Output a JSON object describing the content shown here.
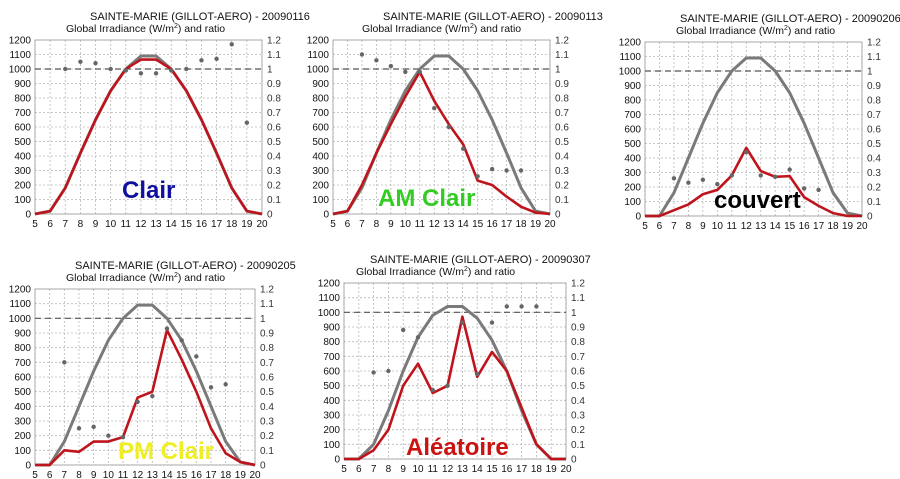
{
  "colors": {
    "clear_sky_line": "#7a7a7a",
    "measured_line": "#c0141c",
    "ratio_dots": "#666666"
  },
  "chart_data": [
    {
      "type": "line",
      "title": "SAINTE-MARIE (GILLOT-AERO) - 20090116",
      "subtitle_text": "Global Irradiance (W/m",
      "subtitle_sup": "2",
      "subtitle_end": ") and ratio",
      "label": "Clair",
      "label_color": "#0f0fa0",
      "x": [
        5,
        6,
        7,
        8,
        9,
        10,
        11,
        12,
        13,
        14,
        15,
        16,
        17,
        18,
        19,
        20
      ],
      "y_left_ticks": [
        0,
        100,
        200,
        300,
        400,
        500,
        600,
        700,
        800,
        900,
        1000,
        1100,
        1200
      ],
      "y_right_ticks": [
        "0",
        "0.1",
        "0.2",
        "0.3",
        "0.4",
        "0.5",
        "0.6",
        "0.7",
        "0.8",
        "0.9",
        "1",
        "1.1",
        "1.2"
      ],
      "ylim_left": [
        0,
        1200
      ],
      "ylim_right": [
        0,
        1.2
      ],
      "grid": true,
      "reference_ratio": 1,
      "series": [
        {
          "values": [
            0,
            20,
            180,
            420,
            650,
            850,
            1000,
            1090,
            1090,
            1000,
            850,
            650,
            420,
            180,
            20,
            0
          ]
        },
        {
          "values": [
            0,
            20,
            180,
            420,
            650,
            850,
            1000,
            1065,
            1065,
            1000,
            850,
            650,
            420,
            180,
            20,
            0
          ]
        }
      ],
      "ratio_points": [
        [
          7,
          1.0
        ],
        [
          8,
          1.05
        ],
        [
          9,
          1.04
        ],
        [
          10,
          1.0
        ],
        [
          11,
          0.99
        ],
        [
          12,
          0.97
        ],
        [
          13,
          0.97
        ],
        [
          14,
          0.99
        ],
        [
          15,
          1.0
        ],
        [
          16,
          1.06
        ],
        [
          17,
          1.07
        ],
        [
          18,
          1.17
        ],
        [
          19,
          0.63
        ]
      ]
    },
    {
      "type": "line",
      "title": "SAINTE-MARIE (GILLOT-AERO) - 20090113",
      "subtitle_text": "Global Irradiance (W/m",
      "subtitle_sup": "2",
      "subtitle_end": ") and ratio",
      "label": "AM Clair",
      "label_color": "#33cc22",
      "x": [
        5,
        6,
        7,
        8,
        9,
        10,
        11,
        12,
        13,
        14,
        15,
        16,
        17,
        18,
        19,
        20
      ],
      "y_left_ticks": [
        0,
        100,
        200,
        300,
        400,
        500,
        600,
        700,
        800,
        900,
        1000,
        1100,
        1200
      ],
      "y_right_ticks": [
        "0",
        "0.1",
        "0.2",
        "0.3",
        "0.4",
        "0.5",
        "0.6",
        "0.7",
        "0.8",
        "0.9",
        "1",
        "1.1",
        "1.2"
      ],
      "ylim_left": [
        0,
        1200
      ],
      "ylim_right": [
        0,
        1.2
      ],
      "grid": true,
      "reference_ratio": 1,
      "series": [
        {
          "values": [
            0,
            20,
            180,
            420,
            650,
            850,
            1000,
            1090,
            1090,
            1000,
            850,
            650,
            420,
            180,
            20,
            0
          ]
        },
        {
          "values": [
            0,
            20,
            200,
            420,
            620,
            810,
            980,
            780,
            620,
            480,
            230,
            200,
            120,
            50,
            10,
            0
          ]
        }
      ],
      "ratio_points": [
        [
          7,
          1.1
        ],
        [
          8,
          1.06
        ],
        [
          9,
          1.02
        ],
        [
          10,
          0.98
        ],
        [
          11,
          0.98
        ],
        [
          12,
          0.73
        ],
        [
          13,
          0.6
        ],
        [
          14,
          0.45
        ],
        [
          15,
          0.26
        ],
        [
          16,
          0.31
        ],
        [
          17,
          0.3
        ],
        [
          18,
          0.3
        ]
      ]
    },
    {
      "type": "line",
      "title": "SAINTE-MARIE (GILLOT-AERO) - 20090206",
      "subtitle_text": "Global Irradiance (W/m",
      "subtitle_sup": "2",
      "subtitle_end": ") and ratio",
      "label": "couvert",
      "label_color": "#000000",
      "x": [
        5,
        6,
        7,
        8,
        9,
        10,
        11,
        12,
        13,
        14,
        15,
        16,
        17,
        18,
        19,
        20
      ],
      "y_left_ticks": [
        0,
        100,
        200,
        300,
        400,
        500,
        600,
        700,
        800,
        900,
        1000,
        1100,
        1200
      ],
      "y_right_ticks": [
        "0",
        "0.1",
        "0.2",
        "0.3",
        "0.4",
        "0.5",
        "0.6",
        "0.7",
        "0.8",
        "0.9",
        "1",
        "1.1",
        "1.2"
      ],
      "ylim_left": [
        0,
        1200
      ],
      "ylim_right": [
        0,
        1.2
      ],
      "grid": true,
      "reference_ratio": 1,
      "series": [
        {
          "values": [
            0,
            0,
            160,
            400,
            640,
            850,
            1000,
            1090,
            1090,
            1000,
            850,
            640,
            400,
            160,
            20,
            0
          ]
        },
        {
          "values": [
            0,
            0,
            40,
            80,
            150,
            180,
            280,
            470,
            310,
            270,
            275,
            130,
            70,
            20,
            0,
            0
          ]
        }
      ],
      "ratio_points": [
        [
          7,
          0.26
        ],
        [
          8,
          0.23
        ],
        [
          9,
          0.25
        ],
        [
          10,
          0.22
        ],
        [
          11,
          0.28
        ],
        [
          12,
          0.44
        ],
        [
          13,
          0.28
        ],
        [
          14,
          0.27
        ],
        [
          15,
          0.32
        ],
        [
          16,
          0.19
        ],
        [
          17,
          0.18
        ]
      ]
    },
    {
      "type": "line",
      "title": "SAINTE-MARIE (GILLOT-AERO) - 20090205",
      "subtitle_text": "Global Irradiance (W/m",
      "subtitle_sup": "2",
      "subtitle_end": ") and ratio",
      "label": "PM Clair",
      "label_color": "#eeee22",
      "x": [
        5,
        6,
        7,
        8,
        9,
        10,
        11,
        12,
        13,
        14,
        15,
        16,
        17,
        18,
        19,
        20
      ],
      "y_left_ticks": [
        0,
        100,
        200,
        300,
        400,
        500,
        600,
        700,
        800,
        900,
        1000,
        1100,
        1200
      ],
      "y_right_ticks": [
        "0",
        "0.1",
        "0.2",
        "0.3",
        "0.4",
        "0.5",
        "0.6",
        "0.7",
        "0.8",
        "0.9",
        "1",
        "1.1",
        "1.2"
      ],
      "ylim_left": [
        0,
        1200
      ],
      "ylim_right": [
        0,
        1.2
      ],
      "grid": true,
      "reference_ratio": 1,
      "series": [
        {
          "values": [
            0,
            0,
            160,
            400,
            640,
            850,
            1000,
            1090,
            1090,
            1000,
            850,
            640,
            400,
            160,
            20,
            0
          ]
        },
        {
          "values": [
            0,
            0,
            100,
            90,
            160,
            160,
            190,
            460,
            500,
            920,
            720,
            500,
            250,
            80,
            20,
            0
          ]
        }
      ],
      "ratio_points": [
        [
          7,
          0.7
        ],
        [
          8,
          0.25
        ],
        [
          9,
          0.26
        ],
        [
          10,
          0.2
        ],
        [
          11,
          0.19
        ],
        [
          12,
          0.43
        ],
        [
          13,
          0.47
        ],
        [
          14,
          0.93
        ],
        [
          15,
          0.85
        ],
        [
          16,
          0.74
        ],
        [
          17,
          0.53
        ],
        [
          18,
          0.55
        ]
      ]
    },
    {
      "type": "line",
      "title": "SAINTE-MARIE (GILLOT-AERO) - 20090307",
      "subtitle_text": "Global Irradiance (W/m",
      "subtitle_sup": "2",
      "subtitle_end": ") and ratio",
      "label": "Aléatoire",
      "label_color": "#cc1111",
      "x": [
        5,
        6,
        7,
        8,
        9,
        10,
        11,
        12,
        13,
        14,
        15,
        16,
        17,
        18,
        19,
        20
      ],
      "y_left_ticks": [
        0,
        100,
        200,
        300,
        400,
        500,
        600,
        700,
        800,
        900,
        1000,
        1100,
        1200
      ],
      "y_right_ticks": [
        "0",
        "0.1",
        "0.2",
        "0.3",
        "0.4",
        "0.5",
        "0.6",
        "0.7",
        "0.8",
        "0.9",
        "1",
        "1.1",
        "1.2"
      ],
      "ylim_left": [
        0,
        1200
      ],
      "ylim_right": [
        0,
        1.2
      ],
      "grid": true,
      "reference_ratio": 1,
      "series": [
        {
          "values": [
            0,
            0,
            100,
            330,
            600,
            830,
            980,
            1040,
            1040,
            960,
            810,
            600,
            330,
            100,
            0,
            0
          ]
        },
        {
          "values": [
            0,
            0,
            60,
            200,
            500,
            650,
            450,
            500,
            970,
            560,
            730,
            600,
            350,
            100,
            0,
            0
          ]
        }
      ],
      "ratio_points": [
        [
          7,
          0.59
        ],
        [
          8,
          0.6
        ],
        [
          9,
          0.88
        ],
        [
          10,
          0.83
        ],
        [
          11,
          0.47
        ],
        [
          12,
          0.5
        ],
        [
          13,
          0.93
        ],
        [
          14,
          0.58
        ],
        [
          15,
          0.93
        ],
        [
          16,
          1.04
        ],
        [
          17,
          1.04
        ],
        [
          18,
          1.04
        ]
      ]
    }
  ]
}
